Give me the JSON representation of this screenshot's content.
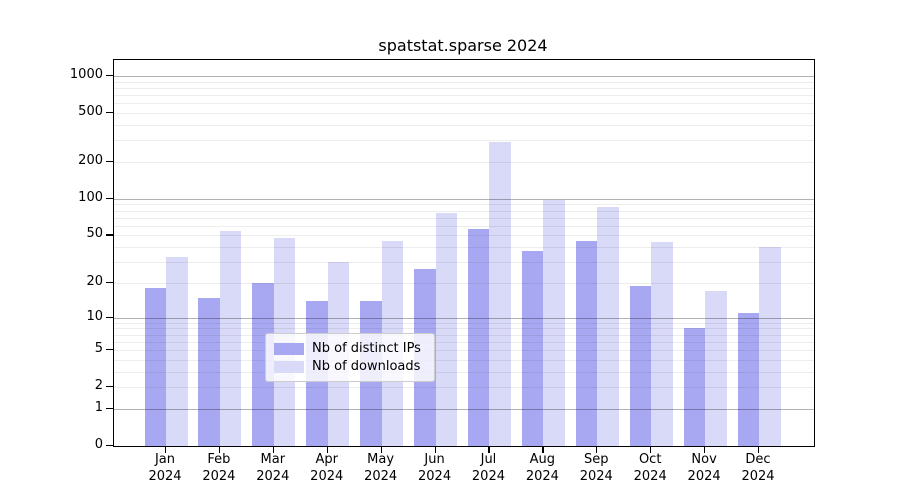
{
  "chart_data": {
    "type": "bar",
    "title": "spatstat.sparse 2024",
    "categories": [
      "Jan",
      "Feb",
      "Mar",
      "Apr",
      "May",
      "Jun",
      "Jul",
      "Aug",
      "Sep",
      "Oct",
      "Nov",
      "Dec"
    ],
    "category_year": "2024",
    "series": [
      {
        "name": "Nb of distinct IPs",
        "color": "#a8a8f2",
        "values": [
          18,
          15,
          20,
          14,
          14,
          26,
          57,
          37,
          45,
          19,
          8,
          11
        ]
      },
      {
        "name": "Nb of downloads",
        "color": "#d9d9f8",
        "values": [
          33,
          54,
          48,
          30,
          45,
          77,
          293,
          98,
          85,
          44,
          17,
          40
        ]
      }
    ],
    "xlabel": "",
    "ylabel": "",
    "y_ticks": [
      1000,
      500,
      200,
      100,
      50,
      20,
      10,
      5,
      2,
      1,
      0
    ],
    "y_scale": "log10(value+1)",
    "ylim": [
      0,
      1350
    ],
    "grid": true,
    "grid_major_at": [
      1,
      10,
      100,
      1000
    ],
    "legend_position": "inside-bottom-center",
    "colors": {
      "background": "#ffffff",
      "frame": "#000000",
      "grid_major": "#b3b3b3",
      "grid_minor": "#ededed",
      "legend_border": "#cccccc"
    }
  }
}
